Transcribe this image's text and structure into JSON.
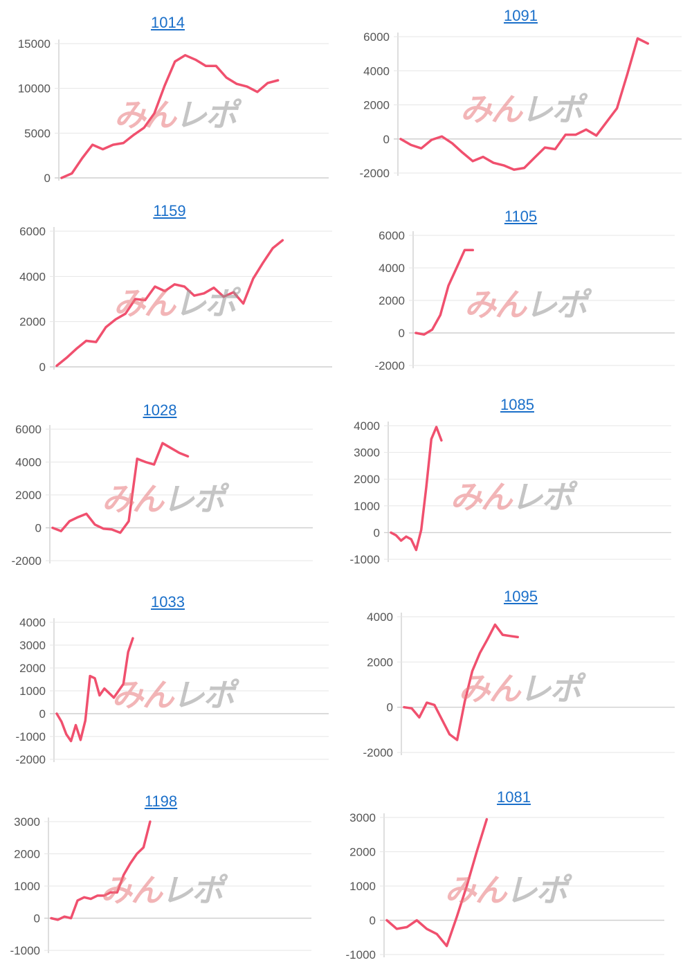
{
  "watermark": {
    "part1": "みん",
    "part2": "レポ"
  },
  "colors": {
    "line": "#f0506e",
    "grid": "#e6e6e6",
    "axis": "#bdbdbd",
    "tick": "#555555",
    "title": "#1a6fc9"
  },
  "chart_data": [
    {
      "type": "line",
      "title": "1014",
      "yticks": [
        0,
        5000,
        10000,
        15000
      ],
      "ylim": [
        0,
        15000
      ],
      "values": [
        0,
        500,
        2200,
        3700,
        3200,
        3700,
        3900,
        4800,
        5600,
        7200,
        10300,
        13000,
        13700,
        13200,
        12500,
        12500,
        11200,
        10500,
        10200,
        9600,
        10600,
        10900
      ]
    },
    {
      "type": "line",
      "title": "1091",
      "yticks": [
        -2000,
        0,
        2000,
        4000,
        6000
      ],
      "ylim": [
        -2000,
        6000
      ],
      "values": [
        0,
        -350,
        -550,
        -50,
        150,
        -250,
        -800,
        -1300,
        -1050,
        -1400,
        -1550,
        -1800,
        -1700,
        -1100,
        -500,
        -600,
        250,
        250,
        550,
        200,
        1000,
        1800,
        3800,
        5900,
        5600
      ]
    },
    {
      "type": "line",
      "title": "1159",
      "yticks": [
        0,
        2000,
        4000,
        6000
      ],
      "ylim": [
        0,
        6000
      ],
      "values": [
        50,
        400,
        800,
        1150,
        1100,
        1750,
        2100,
        2350,
        3000,
        2950,
        3550,
        3350,
        3650,
        3550,
        3150,
        3250,
        3500,
        3100,
        3300,
        2800,
        3900,
        4600,
        5250,
        5600
      ]
    },
    {
      "type": "line",
      "title": "1105",
      "yticks": [
        -2000,
        0,
        2000,
        4000,
        6000
      ],
      "ylim": [
        -2000,
        6000
      ],
      "values": [
        0,
        -100,
        200,
        1100,
        2900,
        4000,
        5100,
        5100
      ]
    },
    {
      "type": "line",
      "title": "1028",
      "yticks": [
        -2000,
        0,
        2000,
        4000,
        6000
      ],
      "ylim": [
        -2000,
        6000
      ],
      "values": [
        0,
        -200,
        400,
        650,
        850,
        200,
        -50,
        -100,
        -300,
        400,
        4200,
        4000,
        3850,
        5150,
        4850,
        4550,
        4350
      ]
    },
    {
      "type": "line",
      "title": "1085",
      "yticks": [
        -1000,
        0,
        1000,
        2000,
        3000,
        4000
      ],
      "ylim": [
        -1000,
        4000
      ],
      "values": [
        0,
        -100,
        -300,
        -150,
        -250,
        -650,
        100,
        1700,
        3500,
        3950,
        3450
      ]
    },
    {
      "type": "line",
      "title": "1033",
      "yticks": [
        -2000,
        -1000,
        0,
        1000,
        2000,
        3000,
        4000
      ],
      "ylim": [
        -2000,
        4000
      ],
      "values": [
        0,
        -350,
        -900,
        -1200,
        -500,
        -1150,
        -300,
        1650,
        1550,
        800,
        1100,
        900,
        700,
        1000,
        1300,
        2700,
        3300
      ]
    },
    {
      "type": "line",
      "title": "1095",
      "yticks": [
        -2000,
        0,
        2000,
        4000
      ],
      "ylim": [
        -2000,
        4000
      ],
      "values": [
        0,
        -50,
        -450,
        200,
        100,
        -550,
        -1200,
        -1450,
        250,
        1600,
        2400,
        3000,
        3650,
        3200,
        3150,
        3100
      ]
    },
    {
      "type": "line",
      "title": "1198",
      "yticks": [
        -1000,
        0,
        1000,
        2000,
        3000
      ],
      "ylim": [
        -1000,
        3000
      ],
      "values": [
        0,
        -50,
        50,
        0,
        550,
        650,
        600,
        700,
        700,
        800,
        800,
        1350,
        1700,
        2000,
        2200,
        3000
      ]
    },
    {
      "type": "line",
      "title": "1081",
      "yticks": [
        -1000,
        0,
        1000,
        2000,
        3000
      ],
      "ylim": [
        -1000,
        3000
      ],
      "values": [
        0,
        -250,
        -200,
        0,
        -250,
        -400,
        -750,
        100,
        1000,
        2000,
        2950
      ]
    }
  ]
}
